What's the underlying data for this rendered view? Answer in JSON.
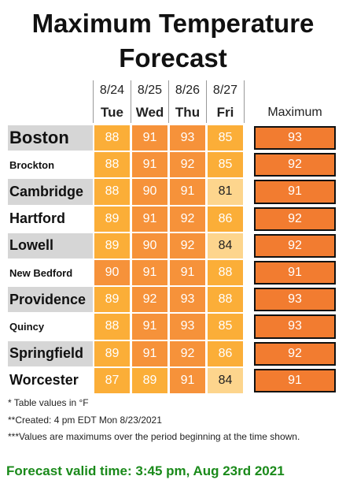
{
  "title": "Maximum Temperature Forecast",
  "table": {
    "dates": [
      "8/24",
      "8/25",
      "8/26",
      "8/27"
    ],
    "days": [
      "Tue",
      "Wed",
      "Thu",
      "Fri"
    ],
    "max_header": "Maximum",
    "rows": [
      {
        "city": "Boston",
        "values": [
          88,
          91,
          93,
          85
        ],
        "max": 93
      },
      {
        "city": "Brockton",
        "values": [
          88,
          91,
          92,
          85
        ],
        "max": 92
      },
      {
        "city": "Cambridge",
        "values": [
          88,
          90,
          91,
          81
        ],
        "max": 91
      },
      {
        "city": "Hartford",
        "values": [
          89,
          91,
          92,
          86
        ],
        "max": 92
      },
      {
        "city": "Lowell",
        "values": [
          89,
          90,
          92,
          84
        ],
        "max": 92
      },
      {
        "city": "New Bedford",
        "values": [
          90,
          91,
          91,
          88
        ],
        "max": 91
      },
      {
        "city": "Providence",
        "values": [
          89,
          92,
          93,
          88
        ],
        "max": 93
      },
      {
        "city": "Quincy",
        "values": [
          88,
          91,
          93,
          85
        ],
        "max": 93
      },
      {
        "city": "Springfield",
        "values": [
          89,
          91,
          92,
          86
        ],
        "max": 92
      },
      {
        "city": "Worcester",
        "values": [
          87,
          89,
          91,
          84
        ],
        "max": 91
      }
    ]
  },
  "notes": [
    "* Table values in °F",
    "**Created: 4 pm EDT Mon 8/23/2021",
    "***Values are maximums over the period beginning at the time shown."
  ],
  "valid_time": "Forecast valid time: 3:45 pm, Aug 23rd 2021"
}
